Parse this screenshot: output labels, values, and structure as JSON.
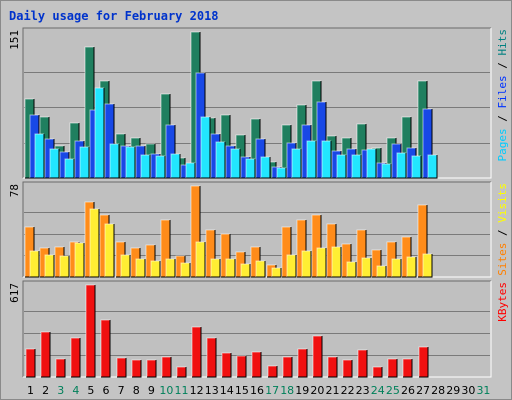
{
  "chart_data": {
    "type": "bar",
    "title": "Daily usage for February 2018",
    "x": [
      "1",
      "2",
      "3",
      "4",
      "5",
      "6",
      "7",
      "8",
      "9",
      "10",
      "11",
      "12",
      "13",
      "14",
      "15",
      "16",
      "17",
      "18",
      "19",
      "20",
      "21",
      "22",
      "23",
      "24",
      "25",
      "26",
      "27",
      "28",
      "29",
      "30",
      "31"
    ],
    "weekend_days": [
      3,
      4,
      10,
      11,
      17,
      18,
      24,
      25,
      31
    ],
    "panels": [
      {
        "max_label": "151",
        "ymax": 151,
        "side_labels": [
          {
            "text": "Pages",
            "color": "#00ccff"
          },
          {
            "text": " / ",
            "color": "#000000"
          },
          {
            "text": "Files",
            "color": "#0033ff"
          },
          {
            "text": " / ",
            "color": "#000000"
          },
          {
            "text": "Hits",
            "color": "#008080"
          }
        ],
        "series": [
          {
            "color": "#1f7f5f",
            "values": [
              82,
              63,
              33,
              57,
              136,
              100,
              45,
              41,
              35,
              87,
              21,
              151,
              62,
              65,
              44,
              61,
              17,
              55,
              76,
              100,
              43,
              41,
              56,
              31,
              41,
              63,
              100
            ]
          },
          {
            "color": "#1848e6",
            "values": [
              65,
              40,
              27,
              38,
              70,
              77,
              33,
              33,
              25,
              55,
              13,
              109,
              46,
              33,
              22,
              40,
              11,
              36,
              55,
              79,
              28,
              30,
              29,
              16,
              35,
              31,
              71
            ]
          },
          {
            "color": "#22e6ff",
            "values": [
              45,
              30,
              20,
              32,
              93,
              35,
              32,
              24,
              23,
              25,
              15,
              63,
              37,
              30,
              20,
              22,
              10,
              30,
              38,
              38,
              24,
              24,
              30,
              14,
              26,
              23,
              24
            ]
          }
        ]
      },
      {
        "max_label": "78",
        "ymax": 78,
        "side_labels": [
          {
            "text": "Sites",
            "color": "#ff8000"
          },
          {
            "text": " / ",
            "color": "#000000"
          },
          {
            "text": "Visits",
            "color": "#ffff00"
          }
        ],
        "series": [
          {
            "color": "#ff8c1a",
            "values": [
              43,
              25,
              26,
              30,
              64,
              53,
              30,
              25,
              27,
              49,
              18,
              78,
              40,
              37,
              21,
              26,
              10,
              43,
              49,
              53,
              45,
              28,
              40,
              23,
              30,
              34,
              62
            ]
          },
          {
            "color": "#ffee33",
            "values": [
              22,
              19,
              18,
              29,
              58,
              45,
              19,
              15,
              14,
              15,
              12,
              30,
              15,
              15,
              11,
              14,
              8,
              19,
              22,
              25,
              26,
              13,
              16,
              9,
              15,
              17,
              20
            ]
          }
        ]
      },
      {
        "max_label": "617",
        "ymax": 617,
        "side_labels": [
          {
            "text": "KBytes",
            "color": "#ff0000"
          }
        ],
        "series": [
          {
            "color": "#f01010",
            "values": [
              186,
              300,
              122,
              262,
              617,
              385,
              130,
              112,
              117,
              134,
              69,
              338,
              260,
              164,
              142,
              165,
              75,
              133,
              188,
              276,
              133,
              111,
              179,
              70,
              122,
              123,
              204
            ]
          }
        ]
      }
    ]
  }
}
